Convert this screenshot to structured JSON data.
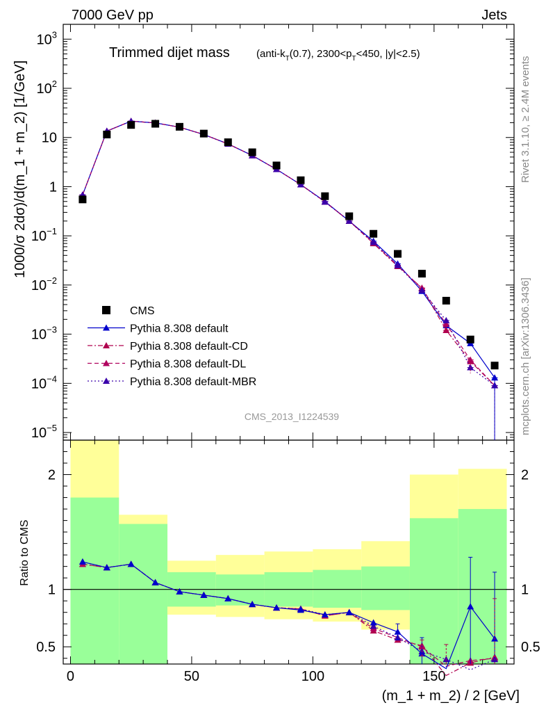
{
  "header": {
    "left": "7000 GeV pp",
    "right": "Jets"
  },
  "side": {
    "rivet": "Rivet 3.1.10, ≥ 2.4M events",
    "mcplots": "mcplots.cern.ch [arXiv:1306.3436]"
  },
  "chart_data": [
    {
      "type": "scatter",
      "title": "Trimmed dijet mass",
      "subtitle": "(anti-k_T(0.7), 2300<p_T<450, |y|<2.5)",
      "ylabel": "1000/σ 2dσ)/d(m_1 + m_2) [1/GeV]",
      "xlim": [
        -3,
        183
      ],
      "ylim": [
        7e-06,
        2000
      ],
      "yscale": "log",
      "analysis_label": "CMS_2013_I1224539",
      "legend_position": "lower-left",
      "y_ticks": [
        {
          "v": 1000,
          "b": "10",
          "e": "3"
        },
        {
          "v": 100,
          "b": "10",
          "e": "2"
        },
        {
          "v": 10,
          "b": "10",
          "e": ""
        },
        {
          "v": 1,
          "b": "1",
          "e": ""
        },
        {
          "v": 0.1,
          "b": "10",
          "e": "−1"
        },
        {
          "v": 0.01,
          "b": "10",
          "e": "−2"
        },
        {
          "v": 0.001,
          "b": "10",
          "e": "−3"
        },
        {
          "v": 0.0001,
          "b": "10",
          "e": "−4"
        },
        {
          "v": 1e-05,
          "b": "10",
          "e": "−5"
        }
      ],
      "x": [
        5,
        15,
        25,
        35,
        45,
        55,
        65,
        75,
        85,
        95,
        105,
        115,
        125,
        135,
        145,
        155,
        165,
        175
      ],
      "series": [
        {
          "name": "CMS",
          "color": "#000000",
          "marker": "square",
          "line": "none",
          "values": [
            0.55,
            11.5,
            18,
            19,
            16.5,
            12,
            8,
            5,
            2.7,
            1.35,
            0.64,
            0.25,
            0.11,
            0.043,
            0.017,
            0.0048,
            0.00078,
            0.00023
          ]
        },
        {
          "name": "Pythia 8.308 default",
          "color": "#0000cc",
          "marker": "triangle",
          "line": "solid",
          "values": [
            0.68,
            13.5,
            21.5,
            19.8,
            16.2,
            11.5,
            7.4,
            4.3,
            2.25,
            1.1,
            0.5,
            0.2,
            0.078,
            0.027,
            0.0075,
            0.0015,
            0.00065,
            0.00013
          ]
        },
        {
          "name": "Pythia 8.308 default-CD",
          "color": "#b0004e",
          "marker": "triangle",
          "line": "dashdot",
          "values": [
            0.68,
            13.5,
            21.5,
            19.8,
            16.2,
            11.5,
            7.4,
            4.3,
            2.25,
            1.1,
            0.49,
            0.2,
            0.07,
            0.024,
            0.0087,
            0.0012,
            0.00028,
            9e-05
          ]
        },
        {
          "name": "Pythia 8.308 default-DL",
          "color": "#b0005e",
          "marker": "triangle",
          "line": "dashed",
          "values": [
            0.68,
            13.5,
            21.5,
            19.8,
            16.2,
            11.5,
            7.4,
            4.3,
            2.25,
            1.1,
            0.49,
            0.2,
            0.072,
            0.025,
            0.0085,
            0.0016,
            0.0003,
            9e-05
          ]
        },
        {
          "name": "Pythia 8.308 default-MBR",
          "color": "#3a00aa",
          "marker": "triangle",
          "line": "dotted",
          "values": [
            0.68,
            13.5,
            21.5,
            19.8,
            16.2,
            11.5,
            7.4,
            4.3,
            2.25,
            1.1,
            0.49,
            0.2,
            0.074,
            0.025,
            0.0078,
            0.0019,
            0.00021,
            9e-05
          ]
        }
      ]
    },
    {
      "type": "line",
      "ylabel": "Ratio to CMS",
      "xlabel": "(m_1 + m_2) / 2 [GeV]",
      "xlim": [
        -3,
        183
      ],
      "ylim": [
        0.35,
        2.3
      ],
      "x_ticks": [
        0,
        50,
        100,
        150
      ],
      "y_ticks": [
        0.5,
        1,
        2
      ],
      "reference_line": 1,
      "bins": [
        [
          0,
          20
        ],
        [
          20,
          40
        ],
        [
          40,
          60
        ],
        [
          60,
          80
        ],
        [
          80,
          100
        ],
        [
          100,
          120
        ],
        [
          120,
          140
        ],
        [
          140,
          160
        ],
        [
          160,
          180
        ]
      ],
      "band_inner": [
        [
          0.3,
          1.8
        ],
        [
          0.35,
          1.57
        ],
        [
          0.85,
          1.15
        ],
        [
          0.86,
          1.13
        ],
        [
          0.85,
          1.15
        ],
        [
          0.84,
          1.17
        ],
        [
          0.82,
          1.2
        ],
        [
          0.3,
          1.62
        ],
        [
          0.3,
          1.7
        ]
      ],
      "band_outer": [
        [
          0.3,
          2.3
        ],
        [
          0.6,
          1.65
        ],
        [
          0.78,
          1.25
        ],
        [
          0.76,
          1.3
        ],
        [
          0.74,
          1.33
        ],
        [
          0.72,
          1.35
        ],
        [
          0.65,
          1.42
        ],
        [
          0.3,
          2.0
        ],
        [
          0.3,
          2.05
        ]
      ],
      "x": [
        5,
        15,
        25,
        35,
        45,
        55,
        65,
        75,
        85,
        95,
        105,
        115,
        125,
        135,
        145,
        155,
        165,
        175
      ],
      "series": [
        {
          "name": "Pythia 8.308 default",
          "color": "#0000cc",
          "line": "solid",
          "values": [
            1.24,
            1.19,
            1.22,
            1.06,
            0.98,
            0.95,
            0.92,
            0.87,
            0.84,
            0.82,
            0.78,
            0.8,
            0.71,
            0.63,
            0.44,
            0.31,
            0.85,
            0.57
          ]
        },
        {
          "name": "Pythia 8.308 default-CD",
          "color": "#b0004e",
          "line": "dashdot",
          "values": [
            1.22,
            1.19,
            1.22,
            1.06,
            0.98,
            0.95,
            0.92,
            0.87,
            0.84,
            0.83,
            0.77,
            0.8,
            0.64,
            0.56,
            0.51,
            0.25,
            0.36,
            0.41
          ]
        },
        {
          "name": "Pythia 8.308 default-DL",
          "color": "#b0005e",
          "line": "dashed",
          "values": [
            1.22,
            1.19,
            1.22,
            1.06,
            0.98,
            0.95,
            0.92,
            0.87,
            0.84,
            0.83,
            0.77,
            0.8,
            0.66,
            0.58,
            0.5,
            0.33,
            0.38,
            0.4
          ]
        },
        {
          "name": "Pythia 8.308 default-MBR",
          "color": "#3a00aa",
          "line": "dotted",
          "values": [
            1.24,
            1.19,
            1.22,
            1.06,
            0.98,
            0.95,
            0.92,
            0.87,
            0.84,
            0.83,
            0.78,
            0.8,
            0.68,
            0.58,
            0.46,
            0.39,
            0.3,
            0.39
          ]
        }
      ]
    }
  ]
}
